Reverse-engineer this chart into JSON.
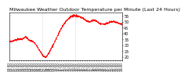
{
  "title": "Milwaukee Weather Outdoor Temperature per Minute (Last 24 Hours)",
  "title_fontsize": 4.5,
  "line_color": "#ff0000",
  "background_color": "#ffffff",
  "ylim": [
    17,
    58
  ],
  "yticks": [
    20,
    25,
    30,
    35,
    40,
    45,
    50,
    55
  ],
  "ylabel_fontsize": 3.5,
  "xlabel_fontsize": 3.0,
  "vline_positions": [
    0.29,
    0.585
  ],
  "vline_color": "#999999",
  "curve_points_x": [
    0,
    1,
    2,
    3,
    3.5,
    4,
    5,
    6,
    7,
    7.5,
    8,
    9,
    10,
    11,
    12,
    13,
    14,
    15,
    16,
    17,
    18,
    19,
    20,
    21,
    22,
    23,
    24
  ],
  "curve_points_y": [
    33,
    34,
    35,
    36,
    37,
    35,
    33,
    28,
    22,
    20,
    21,
    28,
    36,
    44,
    50,
    54,
    55,
    54,
    52,
    50,
    51,
    49,
    48,
    49,
    50,
    49,
    48
  ]
}
